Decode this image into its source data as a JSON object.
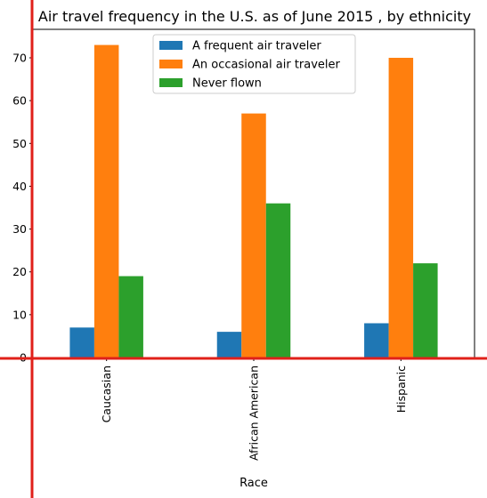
{
  "chart_data": {
    "type": "bar",
    "title": "Air travel frequency in the U.S. as of June 2015 , by ethnicity",
    "xlabel": "Race",
    "ylabel": "",
    "categories": [
      "Caucasian",
      "African American",
      "Hispanic"
    ],
    "series": [
      {
        "name": "A frequent air traveler",
        "color": "#1f77b4",
        "values": [
          7,
          6,
          8
        ]
      },
      {
        "name": "An occasional air traveler",
        "color": "#ff7f0e",
        "values": [
          73,
          57,
          70
        ]
      },
      {
        "name": "Never flown",
        "color": "#2ca02c",
        "values": [
          19,
          36,
          22
        ]
      }
    ],
    "yticks": [
      0,
      10,
      20,
      30,
      40,
      50,
      60,
      70
    ],
    "ylim": [
      0,
      76.65
    ],
    "grid": false,
    "legend_position": "top-center",
    "axis_line_color": "#e0201a"
  }
}
